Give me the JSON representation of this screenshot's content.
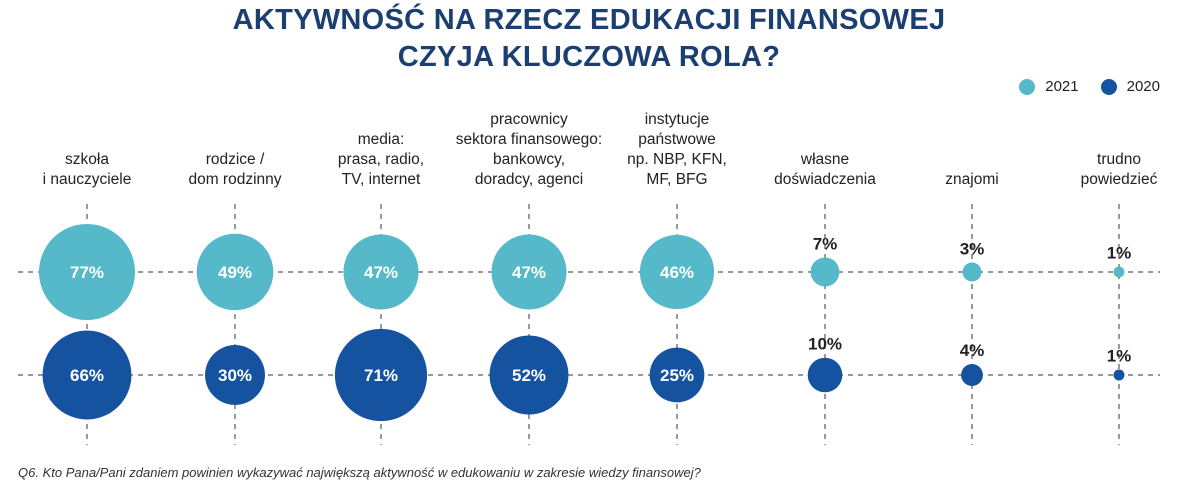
{
  "title_line1": "AKTYWNOŚĆ NA RZECZ EDUKACJI FINANSOWEJ",
  "title_line2": "CZYJA KLUCZOWA ROLA?",
  "colors": {
    "2021": "#55b9c9",
    "2020": "#1552a0",
    "title": "#1c3f72"
  },
  "legend": [
    {
      "label": "2021",
      "color": "#55b9c9"
    },
    {
      "label": "2020",
      "color": "#1552a0"
    }
  ],
  "footnote": "Q6. Kto Pana/Pani zdaniem powinien wykazywać największą aktywność w edukowaniu w zakresie wiedzy finansowej?",
  "chart_data": {
    "type": "bubble",
    "categories": [
      "szkoła\ni nauczyciele",
      "rodzice /\ndom rodzinny",
      "media:\nprasa, radio,\nTV, internet",
      "pracownicy\nsektora finansowego:\nbankowcy,\ndoradcy, agenci",
      "instytucje\npaństwowe\nnp. NBP, KFN,\nMF, BFG",
      "własne\ndoświadczenia",
      "znajomi",
      "trudno\npowiedzieć"
    ],
    "series": [
      {
        "name": "2021",
        "values": [
          77,
          49,
          47,
          47,
          46,
          7,
          3,
          1
        ],
        "labels": [
          "77%",
          "49%",
          "47%",
          "47%",
          "46%",
          "7%",
          "3%",
          "1%"
        ]
      },
      {
        "name": "2020",
        "values": [
          66,
          30,
          71,
          52,
          25,
          10,
          4,
          1
        ],
        "labels": [
          "66%",
          "30%",
          "71%",
          "52%",
          "25%",
          "10%",
          "4%",
          "1%"
        ]
      }
    ]
  }
}
